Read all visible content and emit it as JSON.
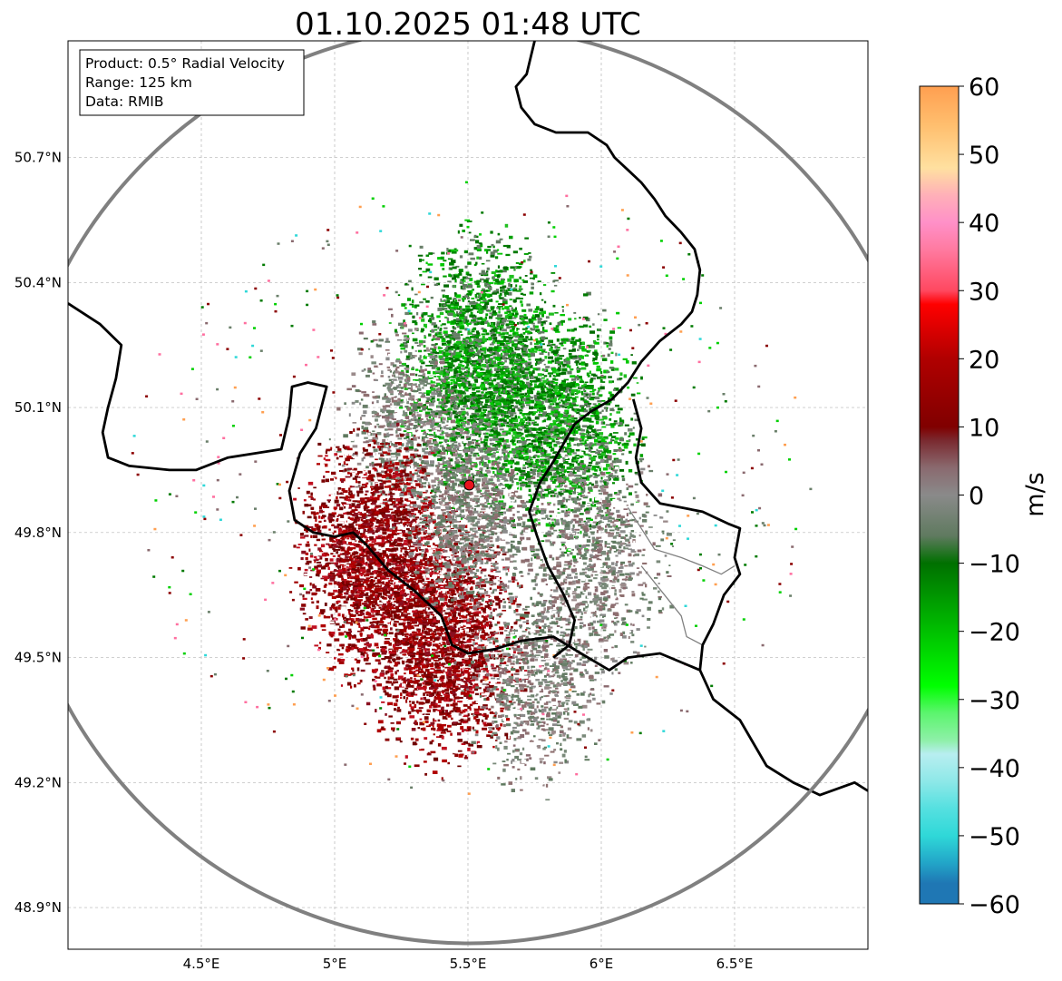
{
  "title": "01.10.2025 01:48 UTC",
  "info_box": {
    "product": "Product: 0.5° Radial Velocity",
    "range": "Range: 125 km",
    "source": "Data: RMIB"
  },
  "map": {
    "lon_range": [
      4.0,
      7.0
    ],
    "lat_range": [
      48.8,
      50.98
    ],
    "lon_ticks": [
      {
        "value": 4.5,
        "label": "4.5°E"
      },
      {
        "value": 5.0,
        "label": "5°E"
      },
      {
        "value": 5.5,
        "label": "5.5°E"
      },
      {
        "value": 6.0,
        "label": "6°E"
      },
      {
        "value": 6.5,
        "label": "6.5°E"
      }
    ],
    "lat_ticks": [
      {
        "value": 48.9,
        "label": "48.9°N"
      },
      {
        "value": 49.2,
        "label": "49.2°N"
      },
      {
        "value": 49.5,
        "label": "49.5°N"
      },
      {
        "value": 49.8,
        "label": "49.8°N"
      },
      {
        "value": 50.1,
        "label": "50.1°N"
      },
      {
        "value": 50.4,
        "label": "50.4°N"
      },
      {
        "value": 50.7,
        "label": "50.7°N"
      }
    ],
    "radar_site": {
      "lon": 5.505,
      "lat": 49.914,
      "color": "#e8141e"
    },
    "range_ring_color": "#808080",
    "border_color": "#000000",
    "inner_border_color": "#808080",
    "borders": [
      [
        [
          4.0,
          50.35
        ],
        [
          4.12,
          50.3
        ],
        [
          4.2,
          50.25
        ],
        [
          4.18,
          50.17
        ],
        [
          4.15,
          50.1
        ],
        [
          4.13,
          50.04
        ],
        [
          4.15,
          49.98
        ],
        [
          4.23,
          49.96
        ],
        [
          4.38,
          49.95
        ],
        [
          4.48,
          49.95
        ],
        [
          4.6,
          49.98
        ],
        [
          4.7,
          49.99
        ],
        [
          4.8,
          50.0
        ],
        [
          4.83,
          50.08
        ],
        [
          4.84,
          50.15
        ],
        [
          4.9,
          50.16
        ],
        [
          4.97,
          50.15
        ],
        [
          4.93,
          50.05
        ],
        [
          4.87,
          49.99
        ],
        [
          4.83,
          49.9
        ],
        [
          4.85,
          49.83
        ],
        [
          4.92,
          49.8
        ],
        [
          5.0,
          49.79
        ],
        [
          5.07,
          49.8
        ],
        [
          5.12,
          49.77
        ],
        [
          5.2,
          49.71
        ],
        [
          5.3,
          49.66
        ],
        [
          5.35,
          49.63
        ],
        [
          5.4,
          49.6
        ],
        [
          5.44,
          49.53
        ],
        [
          5.5,
          49.51
        ],
        [
          5.6,
          49.52
        ],
        [
          5.7,
          49.54
        ],
        [
          5.82,
          49.55
        ],
        [
          5.95,
          49.5
        ],
        [
          6.03,
          49.47
        ],
        [
          6.1,
          49.5
        ],
        [
          6.22,
          49.51
        ],
        [
          6.37,
          49.47
        ],
        [
          6.42,
          49.4
        ],
        [
          6.52,
          49.35
        ],
        [
          6.62,
          49.24
        ],
        [
          6.72,
          49.2
        ],
        [
          6.82,
          49.17
        ],
        [
          6.95,
          49.2
        ],
        [
          7.0,
          49.18
        ]
      ],
      [
        [
          5.75,
          50.98
        ],
        [
          5.72,
          50.9
        ],
        [
          5.68,
          50.87
        ],
        [
          5.7,
          50.82
        ],
        [
          5.75,
          50.78
        ],
        [
          5.83,
          50.76
        ],
        [
          5.95,
          50.76
        ],
        [
          6.02,
          50.73
        ],
        [
          6.05,
          50.7
        ],
        [
          6.1,
          50.67
        ],
        [
          6.15,
          50.64
        ],
        [
          6.2,
          50.6
        ],
        [
          6.24,
          50.56
        ],
        [
          6.3,
          50.52
        ],
        [
          6.35,
          50.48
        ],
        [
          6.37,
          50.43
        ],
        [
          6.36,
          50.37
        ],
        [
          6.34,
          50.33
        ],
        [
          6.3,
          50.3
        ],
        [
          6.22,
          50.26
        ],
        [
          6.15,
          50.21
        ],
        [
          6.1,
          50.16
        ],
        [
          6.04,
          50.12
        ],
        [
          5.96,
          50.09
        ],
        [
          5.9,
          50.06
        ],
        [
          5.82,
          49.97
        ],
        [
          5.77,
          49.92
        ],
        [
          5.73,
          49.85
        ],
        [
          5.76,
          49.79
        ],
        [
          5.8,
          49.72
        ],
        [
          5.86,
          49.65
        ],
        [
          5.9,
          49.59
        ],
        [
          5.88,
          49.53
        ],
        [
          5.82,
          49.5
        ]
      ],
      [
        [
          6.12,
          50.12
        ],
        [
          6.15,
          50.05
        ],
        [
          6.13,
          49.98
        ],
        [
          6.15,
          49.92
        ],
        [
          6.22,
          49.87
        ],
        [
          6.3,
          49.86
        ],
        [
          6.38,
          49.85
        ],
        [
          6.48,
          49.82
        ],
        [
          6.52,
          49.81
        ],
        [
          6.5,
          49.74
        ],
        [
          6.52,
          49.7
        ],
        [
          6.46,
          49.65
        ],
        [
          6.42,
          49.58
        ],
        [
          6.38,
          49.53
        ],
        [
          6.37,
          49.47
        ]
      ]
    ],
    "inner_borders": [
      [
        [
          6.1,
          49.86
        ],
        [
          6.2,
          49.76
        ],
        [
          6.3,
          49.74
        ],
        [
          6.38,
          49.72
        ],
        [
          6.45,
          49.7
        ],
        [
          6.5,
          49.72
        ]
      ],
      [
        [
          6.15,
          49.72
        ],
        [
          6.25,
          49.64
        ],
        [
          6.3,
          49.6
        ],
        [
          6.32,
          49.55
        ],
        [
          6.38,
          49.53
        ]
      ]
    ],
    "radar_clusters": [
      {
        "lon": 5.55,
        "lat": 50.2,
        "r": 0.38,
        "n": 2600,
        "palette": "inbound",
        "color": "#007a00"
      },
      {
        "lon": 5.85,
        "lat": 50.05,
        "r": 0.35,
        "n": 1600,
        "palette": "inbound",
        "color": "#00a000"
      },
      {
        "lon": 5.25,
        "lat": 50.05,
        "r": 0.3,
        "n": 900,
        "palette": "zero",
        "color": "#6a7f6a"
      },
      {
        "lon": 5.95,
        "lat": 49.75,
        "r": 0.35,
        "n": 1100,
        "palette": "zero",
        "color": "#7a8a7a"
      },
      {
        "lon": 5.15,
        "lat": 49.75,
        "r": 0.35,
        "n": 2600,
        "palette": "outbound",
        "color": "#8b0000"
      },
      {
        "lon": 5.4,
        "lat": 49.55,
        "r": 0.35,
        "n": 2600,
        "palette": "outbound",
        "color": "#a00000"
      },
      {
        "lon": 5.5,
        "lat": 49.85,
        "r": 0.28,
        "n": 1200,
        "palette": "zero",
        "color": "#8f7070"
      },
      {
        "lon": 5.75,
        "lat": 49.45,
        "r": 0.3,
        "n": 900,
        "palette": "zero",
        "color": "#8a6a6f"
      }
    ]
  },
  "colorbar": {
    "label": "m/s",
    "min": -60,
    "max": 60,
    "tick_labels": [
      {
        "value": 60,
        "label": "60"
      },
      {
        "value": 50,
        "label": "50"
      },
      {
        "value": 40,
        "label": "40"
      },
      {
        "value": 30,
        "label": "30"
      },
      {
        "value": 20,
        "label": "20"
      },
      {
        "value": 10,
        "label": "10"
      },
      {
        "value": 0,
        "label": "0"
      },
      {
        "value": -10,
        "label": "−10"
      },
      {
        "value": -20,
        "label": "−20"
      },
      {
        "value": -30,
        "label": "−30"
      },
      {
        "value": -40,
        "label": "−40"
      },
      {
        "value": -50,
        "label": "−50"
      },
      {
        "value": -60,
        "label": "−60"
      }
    ],
    "stops": [
      {
        "value": -60,
        "color": "#1f77b4"
      },
      {
        "value": -57,
        "color": "#1f77b4"
      },
      {
        "value": -54,
        "color": "#22a5c8"
      },
      {
        "value": -50,
        "color": "#2fd8d8"
      },
      {
        "value": -46,
        "color": "#55e0e0"
      },
      {
        "value": -42,
        "color": "#8ee8e8"
      },
      {
        "value": -38,
        "color": "#b8eef0"
      },
      {
        "value": -36,
        "color": "#8ef0a8"
      },
      {
        "value": -32,
        "color": "#5cf56e"
      },
      {
        "value": -28,
        "color": "#00ff00"
      },
      {
        "value": -22,
        "color": "#00d000"
      },
      {
        "value": -16,
        "color": "#00a000"
      },
      {
        "value": -10,
        "color": "#007000"
      },
      {
        "value": -6,
        "color": "#5f7a5f"
      },
      {
        "value": 0,
        "color": "#8a8a8a"
      },
      {
        "value": 4,
        "color": "#8a6a6f"
      },
      {
        "value": 8,
        "color": "#7a2a30"
      },
      {
        "value": 10,
        "color": "#800000"
      },
      {
        "value": 20,
        "color": "#b00000"
      },
      {
        "value": 28,
        "color": "#ff0000"
      },
      {
        "value": 30,
        "color": "#ff4860"
      },
      {
        "value": 36,
        "color": "#ff7aa0"
      },
      {
        "value": 40,
        "color": "#ff90c8"
      },
      {
        "value": 44,
        "color": "#ffb0b8"
      },
      {
        "value": 48,
        "color": "#ffe0a0"
      },
      {
        "value": 54,
        "color": "#ffc070"
      },
      {
        "value": 60,
        "color": "#ff9f50"
      }
    ]
  }
}
